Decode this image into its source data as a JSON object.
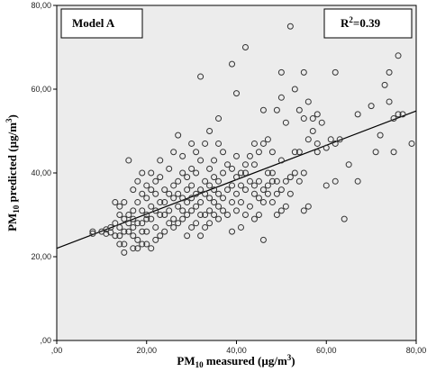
{
  "chart_data": {
    "type": "scatter",
    "model_label": "Model A",
    "r2_label": "0.39",
    "xlabel_main": "PM",
    "xlabel_sub": "10",
    "xlabel_rest": " measured (µg/m",
    "xlabel_sup": "3",
    "xlabel_end": ")",
    "ylabel_main": "PM",
    "ylabel_sub": "10",
    "ylabel_rest": " predicted (µg/m",
    "ylabel_sup": "3",
    "ylabel_end": ")",
    "r_letter": "R",
    "r_sup": "2",
    "r_eq": "=",
    "xlim": [
      0,
      80
    ],
    "ylim": [
      0,
      80
    ],
    "x_ticks": [
      ",00",
      "20,00",
      "40,00",
      "60,00",
      "80,00"
    ],
    "y_ticks": [
      ",00",
      "20,00",
      "40,00",
      "60,00",
      "80,00"
    ],
    "fit_line": {
      "x": [
        0,
        80
      ],
      "y": [
        22.0,
        54.8
      ]
    },
    "points": [
      [
        8,
        25.5
      ],
      [
        8,
        26
      ],
      [
        10,
        26
      ],
      [
        11,
        25.5
      ],
      [
        11,
        26.5
      ],
      [
        12,
        25.8
      ],
      [
        12,
        27
      ],
      [
        13,
        25
      ],
      [
        13,
        28
      ],
      [
        13,
        33
      ],
      [
        14,
        23
      ],
      [
        14,
        25
      ],
      [
        14,
        27
      ],
      [
        14,
        30
      ],
      [
        14,
        32
      ],
      [
        15,
        21
      ],
      [
        15,
        23
      ],
      [
        15,
        26
      ],
      [
        15,
        29
      ],
      [
        15,
        33
      ],
      [
        16,
        26
      ],
      [
        16,
        28
      ],
      [
        16,
        30
      ],
      [
        16,
        43
      ],
      [
        17,
        22
      ],
      [
        17,
        25
      ],
      [
        17,
        27
      ],
      [
        17,
        29
      ],
      [
        17,
        31
      ],
      [
        17,
        36
      ],
      [
        18,
        22
      ],
      [
        18,
        24
      ],
      [
        18,
        28
      ],
      [
        18,
        33
      ],
      [
        18,
        38
      ],
      [
        19,
        23
      ],
      [
        19,
        26
      ],
      [
        19,
        28
      ],
      [
        19,
        31
      ],
      [
        19,
        35
      ],
      [
        19,
        40
      ],
      [
        20,
        23
      ],
      [
        20,
        26
      ],
      [
        20,
        29
      ],
      [
        20,
        30
      ],
      [
        20,
        34
      ],
      [
        20,
        37
      ],
      [
        21,
        22
      ],
      [
        21,
        29
      ],
      [
        21,
        32
      ],
      [
        21,
        36
      ],
      [
        21,
        40
      ],
      [
        22,
        24
      ],
      [
        22,
        27
      ],
      [
        22,
        31
      ],
      [
        22,
        35
      ],
      [
        22,
        38
      ],
      [
        23,
        25
      ],
      [
        23,
        30
      ],
      [
        23,
        33
      ],
      [
        23,
        39
      ],
      [
        23,
        43
      ],
      [
        24,
        26
      ],
      [
        24,
        30
      ],
      [
        24,
        33
      ],
      [
        24,
        36
      ],
      [
        25,
        28
      ],
      [
        25,
        31
      ],
      [
        25,
        35
      ],
      [
        25,
        41
      ],
      [
        26,
        27
      ],
      [
        26,
        29
      ],
      [
        26,
        34
      ],
      [
        26,
        37
      ],
      [
        26,
        45
      ],
      [
        27,
        28
      ],
      [
        27,
        32
      ],
      [
        27,
        35
      ],
      [
        27,
        38
      ],
      [
        27,
        49
      ],
      [
        28,
        29
      ],
      [
        28,
        31
      ],
      [
        28,
        34
      ],
      [
        28,
        40
      ],
      [
        28,
        44
      ],
      [
        29,
        25
      ],
      [
        29,
        30
      ],
      [
        29,
        33
      ],
      [
        29,
        36
      ],
      [
        29,
        39
      ],
      [
        30,
        27
      ],
      [
        30,
        31
      ],
      [
        30,
        34
      ],
      [
        30,
        37
      ],
      [
        30,
        41
      ],
      [
        30,
        47
      ],
      [
        31,
        28
      ],
      [
        31,
        32
      ],
      [
        31,
        35
      ],
      [
        31,
        40
      ],
      [
        31,
        45
      ],
      [
        32,
        25
      ],
      [
        32,
        30
      ],
      [
        32,
        33
      ],
      [
        32,
        36
      ],
      [
        32,
        43
      ],
      [
        32,
        63
      ],
      [
        33,
        27
      ],
      [
        33,
        30
      ],
      [
        33,
        35
      ],
      [
        33,
        38
      ],
      [
        33,
        47
      ],
      [
        34,
        28
      ],
      [
        34,
        31
      ],
      [
        34,
        34
      ],
      [
        34,
        37
      ],
      [
        34,
        41
      ],
      [
        34,
        50
      ],
      [
        35,
        30
      ],
      [
        35,
        33
      ],
      [
        35,
        36
      ],
      [
        35,
        39
      ],
      [
        35,
        43
      ],
      [
        36,
        29
      ],
      [
        36,
        32
      ],
      [
        36,
        35
      ],
      [
        36,
        38
      ],
      [
        36,
        47
      ],
      [
        36,
        53
      ],
      [
        37,
        31
      ],
      [
        37,
        34
      ],
      [
        37,
        40
      ],
      [
        37,
        45
      ],
      [
        38,
        30
      ],
      [
        38,
        36
      ],
      [
        38,
        42
      ],
      [
        39,
        26
      ],
      [
        39,
        33
      ],
      [
        39,
        37
      ],
      [
        39,
        41
      ],
      [
        39,
        66
      ],
      [
        40,
        31
      ],
      [
        40,
        35
      ],
      [
        40,
        39
      ],
      [
        40,
        44
      ],
      [
        40,
        59
      ],
      [
        41,
        27
      ],
      [
        41,
        33
      ],
      [
        41,
        37
      ],
      [
        41,
        40
      ],
      [
        42,
        30
      ],
      [
        42,
        36
      ],
      [
        42,
        40
      ],
      [
        42,
        42
      ],
      [
        42,
        70
      ],
      [
        43,
        32
      ],
      [
        43,
        38
      ],
      [
        43,
        44
      ],
      [
        44,
        29
      ],
      [
        44,
        35
      ],
      [
        44,
        37
      ],
      [
        44,
        42
      ],
      [
        44,
        47
      ],
      [
        45,
        30
      ],
      [
        45,
        34
      ],
      [
        45,
        38
      ],
      [
        45,
        45
      ],
      [
        46,
        24
      ],
      [
        46,
        33
      ],
      [
        46,
        36
      ],
      [
        46,
        47
      ],
      [
        46,
        55
      ],
      [
        47,
        35
      ],
      [
        47,
        37
      ],
      [
        47,
        40
      ],
      [
        47,
        48
      ],
      [
        48,
        33
      ],
      [
        48,
        38
      ],
      [
        48,
        40
      ],
      [
        48,
        45
      ],
      [
        49,
        30
      ],
      [
        49,
        35
      ],
      [
        49,
        38
      ],
      [
        49,
        55
      ],
      [
        50,
        31
      ],
      [
        50,
        36
      ],
      [
        50,
        43
      ],
      [
        50,
        58
      ],
      [
        50,
        64
      ],
      [
        51,
        32
      ],
      [
        51,
        38
      ],
      [
        51,
        52
      ],
      [
        52,
        35
      ],
      [
        52,
        39
      ],
      [
        52,
        75
      ],
      [
        53,
        40
      ],
      [
        53,
        45
      ],
      [
        53,
        60
      ],
      [
        54,
        38
      ],
      [
        54,
        45
      ],
      [
        54,
        55
      ],
      [
        55,
        31
      ],
      [
        55,
        40
      ],
      [
        55,
        53
      ],
      [
        55,
        64
      ],
      [
        56,
        32
      ],
      [
        56,
        48
      ],
      [
        56,
        57
      ],
      [
        57,
        50
      ],
      [
        57,
        53
      ],
      [
        58,
        45
      ],
      [
        58,
        47
      ],
      [
        58,
        54
      ],
      [
        59,
        52
      ],
      [
        60,
        37
      ],
      [
        60,
        46
      ],
      [
        61,
        48
      ],
      [
        62,
        38
      ],
      [
        62,
        47
      ],
      [
        62,
        64
      ],
      [
        63,
        48
      ],
      [
        64,
        29
      ],
      [
        65,
        42
      ],
      [
        67,
        38
      ],
      [
        67,
        54
      ],
      [
        70,
        56
      ],
      [
        71,
        45
      ],
      [
        72,
        49
      ],
      [
        73,
        61
      ],
      [
        74,
        57
      ],
      [
        74,
        64
      ],
      [
        75,
        45
      ],
      [
        75,
        53
      ],
      [
        76,
        54
      ],
      [
        76,
        68
      ],
      [
        77,
        54
      ],
      [
        79,
        47
      ]
    ]
  }
}
